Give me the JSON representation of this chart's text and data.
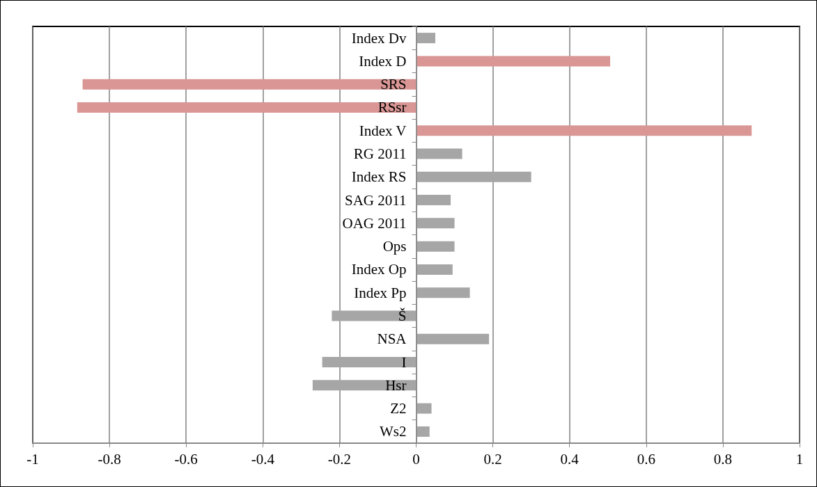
{
  "chart_data": {
    "type": "bar",
    "orientation": "horizontal",
    "categories": [
      "Index Dv",
      "Index D",
      "SRS",
      "RSsr",
      "Index V",
      "RG 2011",
      "Index RS",
      "SAG 2011",
      "OAG 2011",
      "Ops",
      "Index Op",
      "Index Pp",
      "Š",
      "NSA",
      "I",
      "Hsr",
      "Z2",
      "Ws2"
    ],
    "values": [
      0.05,
      0.506,
      -0.87,
      -0.884,
      0.875,
      0.12,
      0.3,
      0.09,
      0.1,
      0.1,
      0.095,
      0.14,
      -0.22,
      0.19,
      -0.245,
      -0.27,
      0.04,
      0.035
    ],
    "colors": [
      "#a6a6a6",
      "#d99694",
      "#d99694",
      "#d99694",
      "#d99694",
      "#a6a6a6",
      "#a6a6a6",
      "#a6a6a6",
      "#a6a6a6",
      "#a6a6a6",
      "#a6a6a6",
      "#a6a6a6",
      "#a6a6a6",
      "#a6a6a6",
      "#a6a6a6",
      "#a6a6a6",
      "#a6a6a6",
      "#a6a6a6"
    ],
    "xlim": [
      -1,
      1
    ],
    "xticks": [
      -1,
      -0.8,
      -0.6,
      -0.4,
      -0.2,
      0,
      0.2,
      0.4,
      0.6,
      0.8,
      1
    ],
    "grid": "x"
  }
}
